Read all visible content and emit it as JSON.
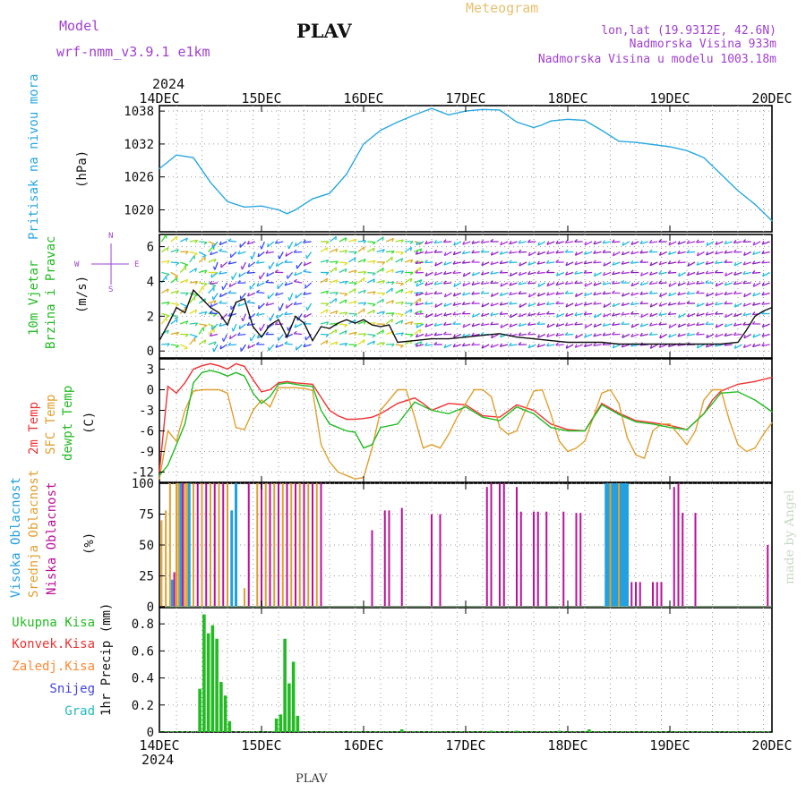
{
  "header": {
    "title": "PLAV",
    "meteogram_label": "Meteogram",
    "model_label": "Model",
    "model_name": "wrf-nmm_v3.9.1 e1km",
    "lonlat": "lon,lat (19.9312E, 42.6N)",
    "altitude": "Nadmorska Visina 933m",
    "model_altitude": "Nadmorska Visina u modelu 1003.18m",
    "year_top": "2024",
    "year_bottom": "2024",
    "footer_station": "PLAV",
    "credit": "made by Angel"
  },
  "colors": {
    "pressure": "#29a8e0",
    "green": "#22bb22",
    "red": "#ee3333",
    "orange": "#e0a030",
    "blue_cloud": "#22a0e0",
    "magenta": "#bb1199",
    "purple": "#aa33cc",
    "snow": "#4444dd",
    "grad": "#22bbbb",
    "convective": "#ee3333",
    "freezing": "#ff8833",
    "credit": "#c8d8c8"
  },
  "x_ticks": [
    "14DEC",
    "15DEC",
    "16DEC",
    "17DEC",
    "18DEC",
    "19DEC",
    "20DEC"
  ],
  "panels": {
    "pressure": {
      "label_left": "Pritisak na nivou mora",
      "unit": "(hPa)",
      "ticks": [
        "1038",
        "1032",
        "1026",
        "1020"
      ]
    },
    "wind": {
      "label_left_1": "10m Vjetar",
      "label_left_2": "Brzina i Pravac",
      "unit": "(m/s)",
      "ticks": [
        "6",
        "4",
        "2",
        "0"
      ],
      "compass_n": "N",
      "compass_s": "S",
      "compass_w": "W",
      "compass_e": "E"
    },
    "temperature": {
      "label_2m": "2m Temp",
      "label_sfc": "SFC Temp",
      "label_dewpt": "dewpt Temp",
      "unit": "(C)",
      "ticks": [
        "3",
        "0",
        "-3",
        "-6",
        "-9",
        "-12"
      ]
    },
    "clouds": {
      "label_high": "Visoka Oblacnost",
      "label_mid": "Srednja Oblacnost",
      "label_low": "Niska Oblacnost",
      "unit": "(%)",
      "ticks": [
        "100",
        "75",
        "50",
        "25",
        "0"
      ]
    },
    "precip": {
      "legend_total": "Ukupna Kisa",
      "legend_conv": "Konvek.Kisa",
      "legend_freeze": "Zaledj.Kisa",
      "legend_snow": "Snijeg",
      "legend_grad": "Grad",
      "unit": "1hr Precip (mm)",
      "ticks": [
        "0.8",
        "0.6",
        "0.4",
        "0.2",
        "0"
      ]
    }
  },
  "chart_data": [
    {
      "type": "line",
      "panel": "pressure",
      "ylabel": "(hPa)",
      "ylim": [
        1016,
        1039
      ],
      "grid": true,
      "series": [
        {
          "name": "Pritisak na nivou mora",
          "x": [
            0,
            4,
            8,
            12,
            16,
            20,
            24,
            28,
            30,
            32,
            36,
            40,
            44,
            48,
            52,
            56,
            60,
            64,
            68,
            72,
            76,
            80,
            84,
            88,
            90,
            92,
            96,
            100,
            104,
            108,
            112,
            116,
            120,
            124,
            128,
            132,
            136,
            140,
            144
          ],
          "y": [
            1027.5,
            1030,
            1029.5,
            1025,
            1021.5,
            1020.5,
            1020.7,
            1020,
            1019.3,
            1020,
            1022,
            1023,
            1026.5,
            1032,
            1034.5,
            1036,
            1037.3,
            1038.5,
            1037.3,
            1038,
            1038.3,
            1038.2,
            1036,
            1035,
            1035.5,
            1036.2,
            1036.5,
            1036.3,
            1034.5,
            1032.5,
            1032.3,
            1031.9,
            1031.5,
            1030.8,
            1029.5,
            1026.5,
            1023.5,
            1021,
            1018
          ]
        }
      ]
    },
    {
      "type": "line",
      "panel": "wind",
      "ylabel": "(m/s)",
      "ylim": [
        -0.4,
        6.7
      ],
      "grid": true,
      "series": [
        {
          "name": "10m Vjetar",
          "x": [
            0,
            2,
            4,
            6,
            8,
            10,
            12,
            14,
            16,
            18,
            20,
            22,
            24,
            26,
            28,
            30,
            32,
            34,
            36,
            38,
            40,
            42,
            44,
            46,
            48,
            50,
            52,
            54,
            56,
            60,
            64,
            68,
            72,
            76,
            80,
            84,
            88,
            92,
            96,
            100,
            104,
            108,
            112,
            116,
            120,
            124,
            128,
            132,
            136,
            138,
            140,
            142,
            144
          ],
          "y": [
            0.6,
            1.5,
            2.5,
            2.2,
            3.5,
            3.0,
            2.5,
            2.2,
            1.5,
            2.8,
            3.0,
            1.4,
            0.8,
            1.5,
            1.8,
            0.8,
            2.0,
            1.6,
            0.6,
            1.4,
            1.3,
            1.6,
            1.8,
            1.6,
            1.8,
            1.5,
            1.4,
            1.5,
            0.5,
            0.6,
            0.7,
            0.7,
            0.8,
            0.9,
            1.0,
            0.8,
            0.7,
            0.6,
            0.5,
            0.5,
            0.5,
            0.4,
            0.4,
            0.4,
            0.4,
            0.4,
            0.4,
            0.4,
            0.5,
            1.2,
            2.0,
            2.3,
            2.5
          ]
        }
      ]
    },
    {
      "type": "line",
      "panel": "temperature",
      "ylabel": "(C)",
      "ylim": [
        -13.5,
        4.5
      ],
      "grid": true,
      "series": [
        {
          "name": "2m Temp",
          "x": [
            0,
            2,
            4,
            6,
            8,
            10,
            12,
            14,
            16,
            18,
            20,
            22,
            24,
            26,
            28,
            30,
            32,
            36,
            40,
            42,
            44,
            46,
            48,
            50,
            52,
            56,
            60,
            62,
            64,
            66,
            68,
            72,
            76,
            80,
            84,
            88,
            92,
            96,
            100,
            104,
            108,
            112,
            116,
            120,
            124,
            128,
            130,
            132,
            136,
            140,
            144
          ],
          "y": [
            -12,
            0.5,
            -0.5,
            1.0,
            3.0,
            3.5,
            3.8,
            3.5,
            3.0,
            3.8,
            3.4,
            1.5,
            -0.3,
            0,
            1.0,
            1.2,
            1.0,
            0.8,
            -3.0,
            -3.8,
            -4.3,
            -4.3,
            -4.2,
            -4.0,
            -3.5,
            -2.0,
            -1.2,
            -2.0,
            -3.0,
            -2.5,
            -2.0,
            -2.2,
            -3.8,
            -4.0,
            -2.2,
            -3.0,
            -5.0,
            -5.8,
            -6.0,
            -2.0,
            -3.4,
            -4.5,
            -4.8,
            -5.2,
            -5.8,
            -3.5,
            -1.5,
            -0.2,
            0.8,
            1.2,
            1.8
          ]
        },
        {
          "name": "SFC Temp",
          "x": [
            0,
            2,
            4,
            6,
            8,
            10,
            12,
            14,
            16,
            18,
            20,
            22,
            24,
            26,
            28,
            30,
            32,
            34,
            36,
            38,
            40,
            42,
            44,
            46,
            48,
            50,
            52,
            54,
            56,
            58,
            60,
            62,
            64,
            66,
            68,
            70,
            72,
            74,
            76,
            78,
            80,
            82,
            84,
            86,
            88,
            90,
            92,
            94,
            96,
            98,
            100,
            102,
            104,
            106,
            108,
            110,
            112,
            114,
            116,
            118,
            120,
            122,
            124,
            126,
            128,
            130,
            132,
            134,
            136,
            138,
            140,
            142,
            144
          ],
          "y": [
            -13,
            -6.0,
            -7.5,
            -3.0,
            -0.2,
            0,
            0,
            0,
            -0.5,
            -5.5,
            -5.8,
            -3.0,
            -1.5,
            -2.5,
            0.3,
            0.3,
            0.3,
            0.2,
            -0.1,
            -8.0,
            -10.5,
            -12.0,
            -12.5,
            -13.0,
            -12.8,
            -8.5,
            -3.0,
            -1.5,
            0,
            0,
            -4.0,
            -8.5,
            -8.0,
            -8.5,
            -6.5,
            -4.0,
            -2.0,
            0,
            0,
            -1.0,
            -5.5,
            -6.5,
            -6.0,
            -3.0,
            -0.2,
            0,
            -3.5,
            -7.5,
            -9.0,
            -8.5,
            -7.5,
            -4.0,
            -0.5,
            0,
            -2.0,
            -7.0,
            -9.5,
            -10.0,
            -6.0,
            -5.0,
            -5.0,
            -6.5,
            -8.0,
            -6.0,
            -1.5,
            0,
            0,
            -4.5,
            -8.0,
            -9.0,
            -8.5,
            -6.5,
            -4.8
          ]
        },
        {
          "name": "dewpt Temp",
          "x": [
            0,
            2,
            4,
            6,
            8,
            10,
            12,
            14,
            16,
            18,
            20,
            22,
            24,
            26,
            28,
            30,
            32,
            34,
            36,
            38,
            40,
            42,
            44,
            46,
            48,
            50,
            52,
            56,
            60,
            64,
            68,
            72,
            76,
            80,
            84,
            88,
            92,
            96,
            100,
            104,
            108,
            112,
            116,
            120,
            124,
            128,
            130,
            132,
            136,
            140,
            144
          ],
          "y": [
            -12.5,
            -11.0,
            -8.0,
            -5.0,
            1.0,
            2.5,
            2.8,
            2.5,
            2.0,
            2.5,
            2.0,
            -0.5,
            -2.0,
            -1.0,
            0.8,
            1.0,
            0.8,
            0.6,
            0.5,
            -3.0,
            -5.0,
            -5.5,
            -6.0,
            -6.2,
            -8.5,
            -8.0,
            -5.5,
            -5.0,
            -1.8,
            -3.0,
            -3.5,
            -2.5,
            -4.0,
            -4.5,
            -2.5,
            -3.5,
            -5.5,
            -6.0,
            -6.0,
            -2.2,
            -3.6,
            -4.7,
            -5.0,
            -5.5,
            -5.8,
            -3.5,
            -2.0,
            -0.5,
            -0.3,
            -1.5,
            -3.2
          ]
        }
      ]
    },
    {
      "type": "bar",
      "panel": "clouds",
      "ylabel": "(%)",
      "ylim": [
        0,
        100
      ],
      "grid": true,
      "series": [
        {
          "name": "Visoka Oblacnost",
          "x": [
            3,
            5,
            7,
            17,
            18,
            105,
            105.5,
            106,
            106.5,
            107,
            107.5,
            108,
            108.5,
            109,
            109.5,
            110
          ],
          "y": [
            22,
            100,
            100,
            78,
            100,
            100,
            100,
            100,
            100,
            100,
            100,
            100,
            100,
            100,
            100,
            100
          ]
        },
        {
          "name": "Srednja Oblacnost",
          "x": [
            0.5,
            1.5,
            2.5,
            4,
            4.5,
            6,
            6.5,
            8,
            10,
            12,
            14,
            16,
            20,
            23,
            25,
            27,
            29,
            31,
            33,
            35,
            37,
            106,
            108
          ],
          "y": [
            70,
            78,
            100,
            100,
            100,
            100,
            100,
            100,
            100,
            100,
            100,
            100,
            15,
            100,
            100,
            100,
            100,
            100,
            100,
            100,
            100,
            100,
            100
          ]
        },
        {
          "name": "Niska Oblacnost",
          "x": [
            3.5,
            5.5,
            9,
            11,
            13,
            15,
            21,
            24,
            26,
            28,
            30,
            32,
            34,
            36,
            38,
            50,
            53,
            54,
            57,
            64,
            66,
            77,
            78,
            80,
            81,
            84,
            85,
            88,
            89,
            91,
            95,
            98,
            99,
            111,
            112,
            113,
            116,
            117,
            118,
            121,
            122,
            123,
            126,
            143
          ],
          "y": [
            28,
            100,
            100,
            100,
            100,
            100,
            100,
            100,
            100,
            100,
            100,
            100,
            100,
            100,
            100,
            62,
            78,
            78,
            80,
            75,
            75,
            97,
            100,
            100,
            100,
            97,
            77,
            77,
            77,
            77,
            77,
            76,
            76,
            20,
            20,
            20,
            20,
            20,
            20,
            97,
            100,
            76,
            76,
            50
          ]
        }
      ]
    },
    {
      "type": "bar",
      "panel": "precip",
      "ylabel": "1hr Precip (mm)",
      "ylim": [
        0,
        0.92
      ],
      "grid": true,
      "series": [
        {
          "name": "Ukupna Kisa",
          "x": [
            9.5,
            10.5,
            11.5,
            12.5,
            13.5,
            14.5,
            15.5,
            16.5,
            27.5,
            28.5,
            29.5,
            30.5,
            31.5,
            32.5,
            57,
            78,
            84,
            94,
            101
          ],
          "y": [
            0.32,
            0.87,
            0.73,
            0.79,
            0.69,
            0.37,
            0.27,
            0.08,
            0.1,
            0.13,
            0.69,
            0.36,
            0.52,
            0.12,
            0.02,
            0.01,
            0.01,
            0.01,
            0.02
          ]
        }
      ]
    }
  ]
}
